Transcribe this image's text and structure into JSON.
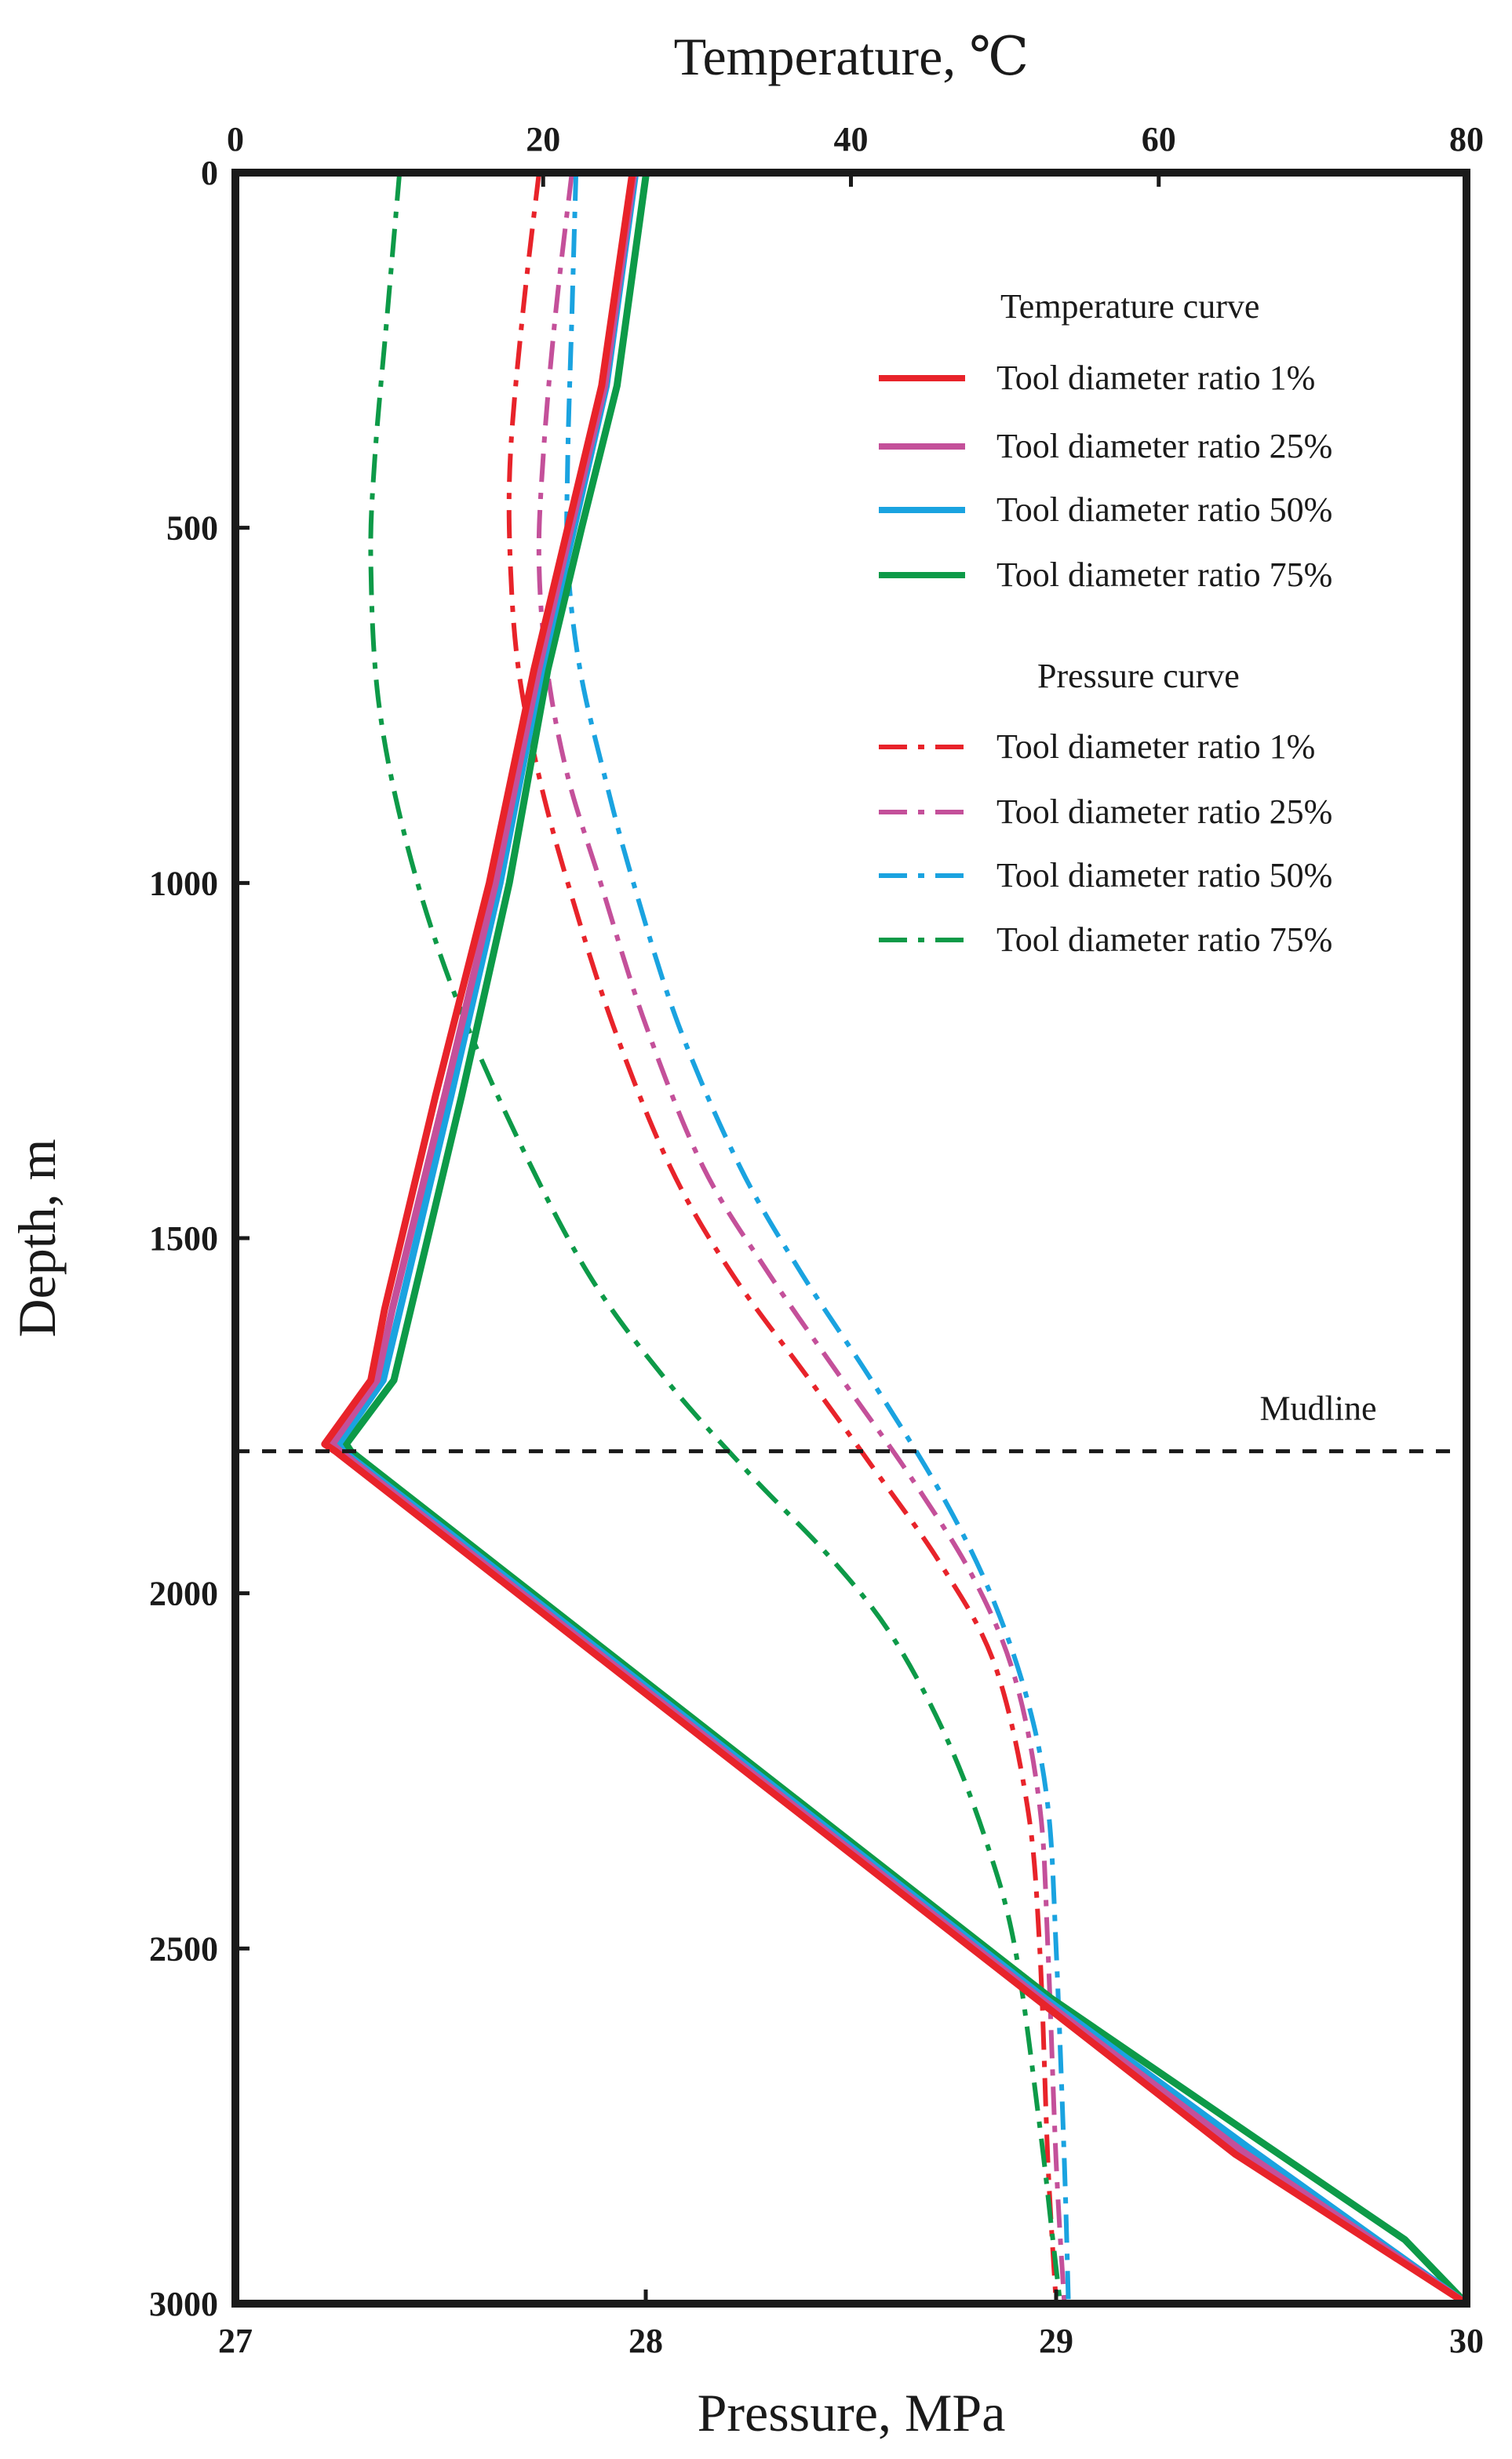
{
  "chart_data": {
    "type": "line",
    "title": "",
    "top_axis": {
      "label": "Temperature, ℃",
      "range": [
        0,
        80
      ],
      "ticks": [
        0,
        20,
        40,
        60,
        80
      ]
    },
    "bottom_axis": {
      "label": "Pressure, MPa",
      "range": [
        27,
        30
      ],
      "ticks": [
        27,
        28,
        29,
        30
      ]
    },
    "y_axis": {
      "label": "Depth, m",
      "range": [
        0,
        3000
      ],
      "inverted": true,
      "ticks": [
        0,
        500,
        1000,
        1500,
        2000,
        2500,
        3000
      ]
    },
    "grid": false,
    "legend_position": "top-right",
    "legend": {
      "temperature_title": "Temperature curve",
      "pressure_title": "Pressure curve"
    },
    "annotations": [
      {
        "text": "Mudline",
        "depth": 1800
      }
    ],
    "temperature_series": [
      {
        "name": "Tool diameter ratio 1%",
        "color": "#e8232a",
        "axis": "temperature",
        "style": "solid",
        "points": [
          [
            25.8,
            0
          ],
          [
            23.8,
            300
          ],
          [
            21.6,
            500
          ],
          [
            19.4,
            700
          ],
          [
            16.5,
            1000
          ],
          [
            13.0,
            1300
          ],
          [
            9.7,
            1600
          ],
          [
            8.8,
            1700
          ],
          [
            5.8,
            1790
          ],
          [
            6.5,
            1800
          ],
          [
            13.0,
            1910
          ],
          [
            26.0,
            2130
          ],
          [
            39.0,
            2350
          ],
          [
            52.0,
            2570
          ],
          [
            65.0,
            2790
          ],
          [
            80.0,
            3000
          ]
        ]
      },
      {
        "name": "Tool diameter ratio 25%",
        "color": "#c4509a",
        "axis": "temperature",
        "style": "solid",
        "points": [
          [
            25.9,
            0
          ],
          [
            24.0,
            300
          ],
          [
            21.8,
            500
          ],
          [
            19.7,
            700
          ],
          [
            16.9,
            1000
          ],
          [
            13.6,
            1300
          ],
          [
            10.2,
            1600
          ],
          [
            9.2,
            1700
          ],
          [
            6.3,
            1790
          ],
          [
            6.8,
            1800
          ],
          [
            13.3,
            1910
          ],
          [
            26.3,
            2130
          ],
          [
            39.3,
            2350
          ],
          [
            52.3,
            2570
          ],
          [
            65.4,
            2785
          ],
          [
            80.0,
            3000
          ]
        ]
      },
      {
        "name": "Tool diameter ratio 50%",
        "color": "#1aa3e0",
        "axis": "temperature",
        "style": "solid",
        "points": [
          [
            26.0,
            0
          ],
          [
            24.1,
            300
          ],
          [
            22.0,
            500
          ],
          [
            19.9,
            700
          ],
          [
            17.2,
            1000
          ],
          [
            14.0,
            1300
          ],
          [
            10.7,
            1600
          ],
          [
            9.6,
            1700
          ],
          [
            6.7,
            1790
          ],
          [
            7.0,
            1800
          ],
          [
            13.6,
            1910
          ],
          [
            26.6,
            2130
          ],
          [
            39.6,
            2350
          ],
          [
            52.6,
            2570
          ],
          [
            65.8,
            2780
          ],
          [
            80.0,
            3000
          ]
        ]
      },
      {
        "name": "Tool diameter ratio 75%",
        "color": "#0d9a48",
        "axis": "temperature",
        "style": "solid",
        "points": [
          [
            26.7,
            0
          ],
          [
            24.8,
            300
          ],
          [
            22.5,
            500
          ],
          [
            20.3,
            700
          ],
          [
            17.8,
            1000
          ],
          [
            14.7,
            1300
          ],
          [
            11.4,
            1600
          ],
          [
            10.3,
            1700
          ],
          [
            7.2,
            1790
          ],
          [
            7.5,
            1800
          ],
          [
            14.0,
            1910
          ],
          [
            27.0,
            2130
          ],
          [
            40.0,
            2350
          ],
          [
            53.0,
            2570
          ],
          [
            66.5,
            2770
          ],
          [
            76.0,
            2910
          ],
          [
            80.0,
            3000
          ]
        ]
      }
    ],
    "pressure_series": [
      {
        "name": "Tool diameter ratio 1%",
        "color": "#e8232a",
        "axis": "pressure",
        "style": "dash-dot",
        "points": [
          [
            27.74,
            0
          ],
          [
            27.7,
            200
          ],
          [
            27.67,
            400
          ],
          [
            27.67,
            550
          ],
          [
            27.69,
            700
          ],
          [
            27.74,
            850
          ],
          [
            27.81,
            1000
          ],
          [
            27.92,
            1200
          ],
          [
            28.06,
            1400
          ],
          [
            28.21,
            1550
          ],
          [
            28.4,
            1700
          ],
          [
            28.55,
            1820
          ],
          [
            28.72,
            1960
          ],
          [
            28.85,
            2100
          ],
          [
            28.93,
            2300
          ],
          [
            28.96,
            2500
          ],
          [
            28.98,
            2800
          ],
          [
            29.0,
            3000
          ]
        ]
      },
      {
        "name": "Tool diameter ratio 25%",
        "color": "#c4509a",
        "axis": "pressure",
        "style": "dash-dot",
        "points": [
          [
            27.82,
            0
          ],
          [
            27.78,
            200
          ],
          [
            27.75,
            400
          ],
          [
            27.74,
            550
          ],
          [
            27.76,
            700
          ],
          [
            27.81,
            850
          ],
          [
            27.89,
            1000
          ],
          [
            28.0,
            1200
          ],
          [
            28.14,
            1400
          ],
          [
            28.3,
            1550
          ],
          [
            28.48,
            1700
          ],
          [
            28.65,
            1840
          ],
          [
            28.8,
            1980
          ],
          [
            28.9,
            2120
          ],
          [
            28.96,
            2300
          ],
          [
            28.98,
            2500
          ],
          [
            29.0,
            2800
          ],
          [
            29.02,
            3000
          ]
        ]
      },
      {
        "name": "Tool diameter ratio 50%",
        "color": "#1aa3e0",
        "axis": "pressure",
        "style": "dash-dot",
        "points": [
          [
            27.83,
            0
          ],
          [
            27.82,
            200
          ],
          [
            27.81,
            400
          ],
          [
            27.81,
            550
          ],
          [
            27.84,
            700
          ],
          [
            27.9,
            850
          ],
          [
            27.97,
            1000
          ],
          [
            28.08,
            1200
          ],
          [
            28.23,
            1400
          ],
          [
            28.38,
            1550
          ],
          [
            28.55,
            1700
          ],
          [
            28.72,
            1860
          ],
          [
            28.84,
            2000
          ],
          [
            28.93,
            2150
          ],
          [
            28.98,
            2300
          ],
          [
            29.0,
            2500
          ],
          [
            29.02,
            2800
          ],
          [
            29.03,
            3000
          ]
        ]
      },
      {
        "name": "Tool diameter ratio 75%",
        "color": "#0d9a48",
        "axis": "pressure",
        "style": "dash-dot",
        "points": [
          [
            27.4,
            0
          ],
          [
            27.37,
            200
          ],
          [
            27.34,
            400
          ],
          [
            27.33,
            550
          ],
          [
            27.35,
            750
          ],
          [
            27.42,
            950
          ],
          [
            27.53,
            1150
          ],
          [
            27.68,
            1350
          ],
          [
            27.86,
            1550
          ],
          [
            28.05,
            1700
          ],
          [
            28.25,
            1830
          ],
          [
            28.45,
            1950
          ],
          [
            28.6,
            2060
          ],
          [
            28.73,
            2200
          ],
          [
            28.83,
            2350
          ],
          [
            28.9,
            2500
          ],
          [
            28.96,
            2750
          ],
          [
            28.99,
            2900
          ],
          [
            29.01,
            3000
          ]
        ]
      }
    ]
  }
}
